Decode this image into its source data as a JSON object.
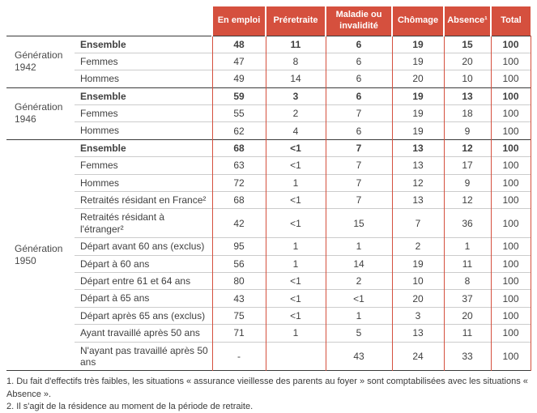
{
  "table": {
    "columns": [
      "En emploi",
      "Préretraite",
      "Maladie ou invalidité",
      "Chômage",
      "Absence¹",
      "Total"
    ],
    "groups": [
      {
        "label": "Génération 1942",
        "rows": [
          {
            "label": "Ensemble",
            "bold": true,
            "values": [
              "48",
              "11",
              "6",
              "19",
              "15",
              "100"
            ]
          },
          {
            "label": "Femmes",
            "bold": false,
            "values": [
              "47",
              "8",
              "6",
              "19",
              "20",
              "100"
            ]
          },
          {
            "label": "Hommes",
            "bold": false,
            "values": [
              "49",
              "14",
              "6",
              "20",
              "10",
              "100"
            ]
          }
        ]
      },
      {
        "label": "Génération 1946",
        "rows": [
          {
            "label": "Ensemble",
            "bold": true,
            "values": [
              "59",
              "3",
              "6",
              "19",
              "13",
              "100"
            ]
          },
          {
            "label": "Femmes",
            "bold": false,
            "values": [
              "55",
              "2",
              "7",
              "19",
              "18",
              "100"
            ]
          },
          {
            "label": "Hommes",
            "bold": false,
            "values": [
              "62",
              "4",
              "6",
              "19",
              "9",
              "100"
            ]
          }
        ]
      },
      {
        "label": "Génération 1950",
        "rows": [
          {
            "label": "Ensemble",
            "bold": true,
            "values": [
              "68",
              "<1",
              "7",
              "13",
              "12",
              "100"
            ]
          },
          {
            "label": "Femmes",
            "bold": false,
            "values": [
              "63",
              "<1",
              "7",
              "13",
              "17",
              "100"
            ]
          },
          {
            "label": "Hommes",
            "bold": false,
            "values": [
              "72",
              "1",
              "7",
              "12",
              "9",
              "100"
            ]
          },
          {
            "label": "Retraités résidant en France²",
            "bold": false,
            "values": [
              "68",
              "<1",
              "7",
              "13",
              "12",
              "100"
            ]
          },
          {
            "label": "Retraités résidant à l'étranger²",
            "bold": false,
            "values": [
              "42",
              "<1",
              "15",
              "7",
              "36",
              "100"
            ]
          },
          {
            "label": "Départ avant 60 ans (exclus)",
            "bold": false,
            "values": [
              "95",
              "1",
              "1",
              "2",
              "1",
              "100"
            ]
          },
          {
            "label": "Départ à 60 ans",
            "bold": false,
            "values": [
              "56",
              "1",
              "14",
              "19",
              "11",
              "100"
            ]
          },
          {
            "label": "Départ entre 61 et 64 ans",
            "bold": false,
            "values": [
              "80",
              "<1",
              "2",
              "10",
              "8",
              "100"
            ]
          },
          {
            "label": "Départ à 65 ans",
            "bold": false,
            "values": [
              "43",
              "<1",
              "<1",
              "20",
              "37",
              "100"
            ]
          },
          {
            "label": "Départ après 65 ans (exclus)",
            "bold": false,
            "values": [
              "75",
              "<1",
              "1",
              "3",
              "20",
              "100"
            ]
          },
          {
            "label": "Ayant travaillé après 50 ans",
            "bold": false,
            "values": [
              "71",
              "1",
              "5",
              "13",
              "11",
              "100"
            ]
          },
          {
            "label": "N'ayant pas travaillé après 50 ans",
            "bold": false,
            "values": [
              "-",
              "",
              "43",
              "24",
              "33",
              "100"
            ]
          }
        ]
      }
    ]
  },
  "footnotes": [
    "1. Du fait d'effectifs très faibles, les situations « assurance vieillesse des parents au foyer » sont comptabilisées avec les situations « Absence ».",
    "2. Il s'agit de la résidence au moment de la période de retraite."
  ],
  "colors": {
    "header_red": "#d5503e"
  }
}
